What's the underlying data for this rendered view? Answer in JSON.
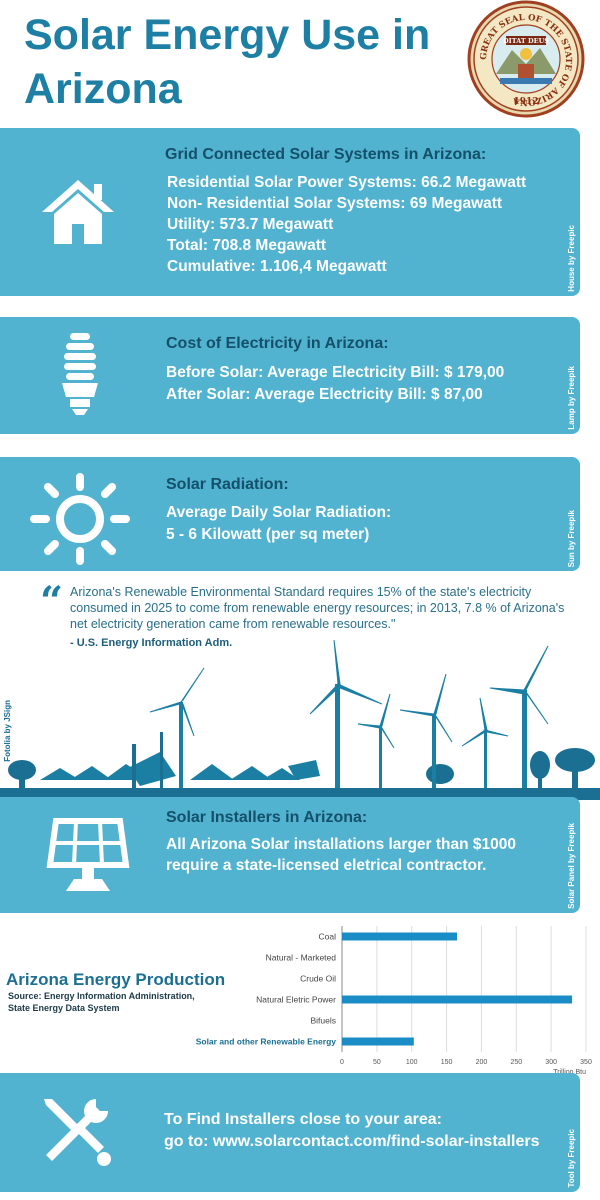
{
  "header": {
    "title": "Solar Energy Use in Arizona",
    "seal": {
      "outer_text": "GREAT SEAL OF THE STATE OF ARIZONA",
      "motto": "DITAT DEUS",
      "year": "1912"
    }
  },
  "grid": {
    "title": "Grid Connected Solar Systems in Arizona:",
    "lines": [
      "Residential Solar Power Systems: 66.2 Megawatt",
      "Non- Residential Solar Systems: 69 Megawatt",
      "Utility: 573.7 Megawatt",
      "Total: 708.8 Megawatt",
      "Cumulative: 1.106,4 Megawatt"
    ],
    "credit": "House by Freepic",
    "icon": "house-icon"
  },
  "cost": {
    "title": "Cost of Electricity in Arizona:",
    "lines": [
      "Before Solar: Average Electricity Bill: $ 179,00",
      "After Solar: Average Electricity Bill: $ 87,00"
    ],
    "credit": "Lamp by Freepik",
    "icon": "lightbulb-icon"
  },
  "radiation": {
    "title": "Solar Radiation:",
    "lines": [
      "Average Daily Solar Radiation:",
      "5 - 6  Kilowatt (per sq meter)"
    ],
    "credit": "Sun by Freepik",
    "icon": "sun-icon"
  },
  "quote": {
    "text": "Arizona's Renewable Environmental Standard requires 15% of the state's electricity consumed in 2025 to come from renewable energy resources; in 2013, 7.8 % of Arizona's net electricity generation came from renewable resources.\"",
    "source": "- U.S. Energy Information Adm.",
    "scene_credit": "Fotolia by JSign"
  },
  "installers": {
    "title": "Solar Installers in Arizona:",
    "lines": [
      "All Arizona Solar installations larger than $1000",
      "require a state-licensed eletrical contractor."
    ],
    "credit": "Solar Panel by Freepik",
    "icon": "solar-panel-icon"
  },
  "production": {
    "title": "Arizona Energy Production",
    "source": "Source: Energy Information Administration, State Energy Data System"
  },
  "chart_data": {
    "type": "bar",
    "orientation": "horizontal",
    "categories": [
      "Coal",
      "Natural - Marketed",
      "Crude Oil",
      "Natural Eletric Power",
      "Bifuels",
      "Solar and other Renewable Energy"
    ],
    "values": [
      165,
      0,
      0,
      330,
      0,
      103
    ],
    "xlabel": "Trillion Btu",
    "xlim": [
      0,
      350
    ],
    "xticks": [
      "0",
      "50",
      "100",
      "150",
      "200",
      "250",
      "300",
      "350"
    ],
    "grid": true,
    "bar_color": "#1a8cc6"
  },
  "find": {
    "lines": [
      "To Find Installers close to your area:",
      "go to: www.solarcontact.com/find-solar-installers"
    ],
    "credit": "Tool by Freepic",
    "icon": "tools-icon"
  },
  "colors": {
    "band": "#51b3d0",
    "title": "#1c7fa3",
    "band_title": "#15506a"
  }
}
